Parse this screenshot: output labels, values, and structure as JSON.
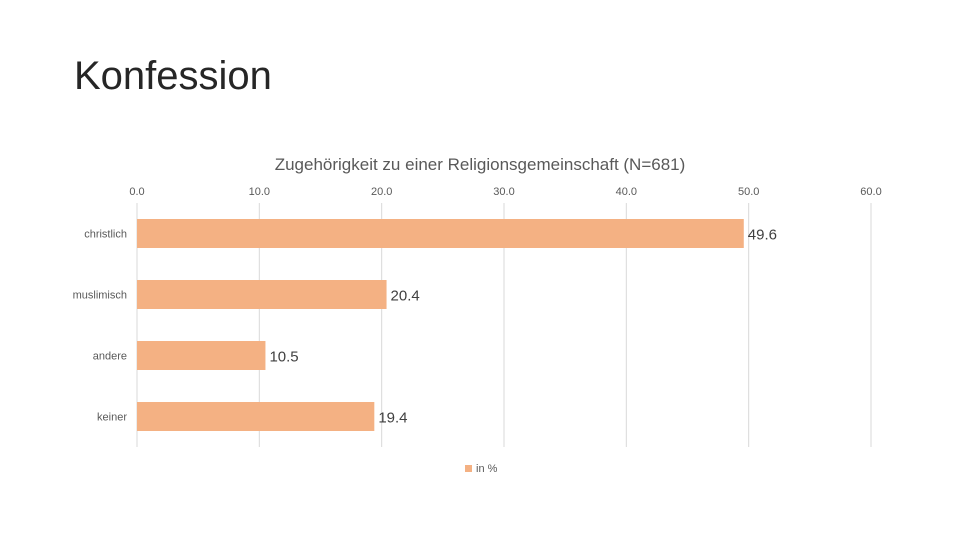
{
  "slide": {
    "title": "Konfession"
  },
  "chart_data": {
    "type": "bar",
    "orientation": "horizontal",
    "title": "Zugehörigkeit zu einer Religionsgemeinschaft (N=681)",
    "categories": [
      "christlich",
      "muslimisch",
      "andere",
      "keiner"
    ],
    "series": [
      {
        "name": "in %",
        "values": [
          49.6,
          20.4,
          10.5,
          19.4
        ],
        "color": "#f4b183"
      }
    ],
    "data_labels": [
      "49.6",
      "20.4",
      "10.5",
      "19.4"
    ],
    "xlim": [
      0,
      60
    ],
    "x_ticks": [
      0,
      10,
      20,
      30,
      40,
      50,
      60
    ],
    "x_tick_labels": [
      "0.0",
      "10.0",
      "20.0",
      "30.0",
      "40.0",
      "50.0",
      "60.0"
    ],
    "axis_position": "top",
    "grid": true,
    "legend_position": "bottom"
  }
}
